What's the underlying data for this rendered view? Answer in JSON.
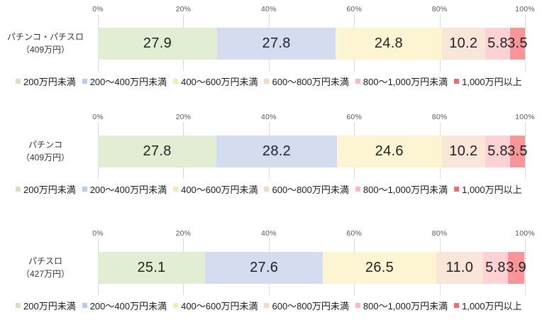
{
  "page": {
    "background": "#ffffff",
    "gridline_color": "#d9d9d9",
    "axis_label_color": "#595959",
    "value_label_color": "#1f1f1f"
  },
  "axis": {
    "ticks": [
      "0%",
      "20%",
      "40%",
      "60%",
      "80%",
      "100%"
    ]
  },
  "legend": {
    "items": [
      {
        "label": "200万円未満",
        "swatch_color": "#cfe6bc",
        "bar_color": "#e1eed3"
      },
      {
        "label": "200～400万円未満",
        "swatch_color": "#bccbe8",
        "bar_color": "#d4ddef"
      },
      {
        "label": "400～600万円未満",
        "swatch_color": "#fbe9ad",
        "bar_color": "#fdf4d2"
      },
      {
        "label": "600～800万円未満",
        "swatch_color": "#f6d9c5",
        "bar_color": "#f9e6d9"
      },
      {
        "label": "800～1,000万円未満",
        "swatch_color": "#fabbc1",
        "bar_color": "#fcd2d5"
      },
      {
        "label": "1,000万円以上",
        "swatch_color": "#f3696e",
        "bar_color": "#f89598"
      }
    ]
  },
  "charts": [
    {
      "label_line1": "パチンコ・パチスロ",
      "label_line2": "（409万円）",
      "values": [
        "27.9",
        "27.8",
        "24.8",
        "10.2",
        "5.8",
        "3.5"
      ]
    },
    {
      "label_line1": "パチンコ",
      "label_line2": "（409万円）",
      "values": [
        "27.8",
        "28.2",
        "24.6",
        "10.2",
        "5.8",
        "3.5"
      ]
    },
    {
      "label_line1": "パチスロ",
      "label_line2": "（427万円）",
      "values": [
        "25.1",
        "27.6",
        "26.5",
        "11.0",
        "5.8",
        "3.9"
      ]
    }
  ],
  "chart_data": [
    {
      "type": "bar",
      "orientation": "horizontal_stacked",
      "category": "パチンコ・パチスロ（409万円）",
      "series": [
        {
          "name": "200万円未満",
          "value": 27.9
        },
        {
          "name": "200～400万円未満",
          "value": 27.8
        },
        {
          "name": "400～600万円未満",
          "value": 24.8
        },
        {
          "name": "600～800万円未満",
          "value": 10.2
        },
        {
          "name": "800～1,000万円未満",
          "value": 5.8
        },
        {
          "name": "1,000万円以上",
          "value": 3.5
        }
      ],
      "xlim": [
        0,
        100
      ],
      "x_ticks": [
        "0%",
        "20%",
        "40%",
        "60%",
        "80%",
        "100%"
      ],
      "grid": true,
      "legend_position": "bottom",
      "value_labels": "inside_center"
    },
    {
      "type": "bar",
      "orientation": "horizontal_stacked",
      "category": "パチンコ（409万円）",
      "series": [
        {
          "name": "200万円未満",
          "value": 27.8
        },
        {
          "name": "200～400万円未満",
          "value": 28.2
        },
        {
          "name": "400～600万円未満",
          "value": 24.6
        },
        {
          "name": "600～800万円未満",
          "value": 10.2
        },
        {
          "name": "800～1,000万円未満",
          "value": 5.8
        },
        {
          "name": "1,000万円以上",
          "value": 3.5
        }
      ],
      "xlim": [
        0,
        100
      ],
      "x_ticks": [
        "0%",
        "20%",
        "40%",
        "60%",
        "80%",
        "100%"
      ],
      "grid": true,
      "legend_position": "bottom",
      "value_labels": "inside_center"
    },
    {
      "type": "bar",
      "orientation": "horizontal_stacked",
      "category": "パチスロ（427万円）",
      "series": [
        {
          "name": "200万円未満",
          "value": 25.1
        },
        {
          "name": "200～400万円未満",
          "value": 27.6
        },
        {
          "name": "400～600万円未満",
          "value": 26.5
        },
        {
          "name": "600～800万円未満",
          "value": 11.0
        },
        {
          "name": "800～1,000万円未満",
          "value": 5.8
        },
        {
          "name": "1,000万円以上",
          "value": 3.9
        }
      ],
      "xlim": [
        0,
        100
      ],
      "x_ticks": [
        "0%",
        "20%",
        "40%",
        "60%",
        "80%",
        "100%"
      ],
      "grid": true,
      "legend_position": "bottom",
      "value_labels": "inside_center"
    }
  ]
}
